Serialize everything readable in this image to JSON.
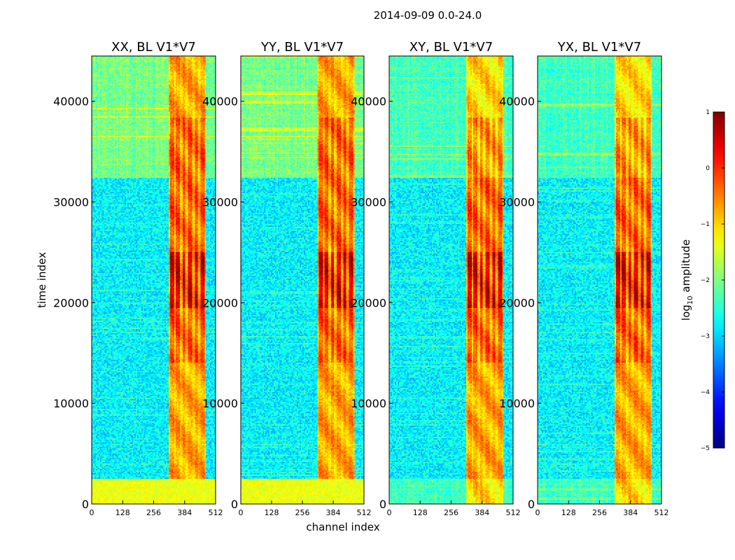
{
  "suptitle": "2014-09-09 0.0-24.0",
  "xlabel": "channel index",
  "ylabel": "time index",
  "colorbar": {
    "label_main": "log",
    "label_sub": "10",
    "label_rest": " amplitude",
    "range": [
      -5,
      1
    ],
    "ticks": [
      "1",
      "0",
      "−1",
      "−2",
      "−3",
      "−4",
      "−5"
    ],
    "colormap": "jet"
  },
  "chart_data": {
    "type": "heatmap",
    "title": "2014-09-09 0.0-24.0",
    "xlabel": "channel index",
    "ylabel": "time index",
    "xlim": [
      0,
      512
    ],
    "ylim": [
      0,
      44500
    ],
    "xticks": [
      "0",
      "128",
      "256",
      "384",
      "512"
    ],
    "yticks": [
      "0",
      "10000",
      "20000",
      "30000",
      "40000"
    ],
    "xtick_values": [
      0,
      128,
      256,
      384,
      512
    ],
    "ytick_values": [
      0,
      10000,
      20000,
      30000,
      40000
    ],
    "color_range": [
      -5,
      1
    ],
    "panels": [
      {
        "title": "XX, BL V1*V7",
        "pol": "XX"
      },
      {
        "title": "YY, BL V1*V7",
        "pol": "YY"
      },
      {
        "title": "XY, BL V1*V7",
        "pol": "XY"
      },
      {
        "title": "YX, BL V1*V7",
        "pol": "YX"
      }
    ],
    "bright_channel_band": [
      320,
      475
    ],
    "quiet_time_band": [
      2500,
      32500
    ]
  }
}
